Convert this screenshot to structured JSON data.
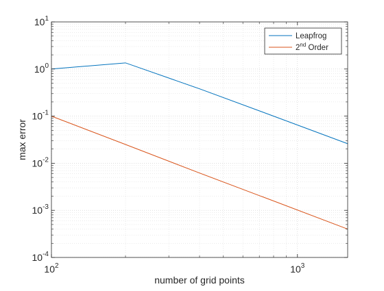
{
  "chart_data": {
    "type": "line",
    "xlabel": "number of grid points",
    "ylabel": "max error",
    "xscale": "log",
    "yscale": "log",
    "xlim": [
      100,
      1600
    ],
    "ylim": [
      0.0001,
      10
    ],
    "grid": "major and minor",
    "legend_position": "top-right",
    "x_ticks": [
      {
        "value": 100,
        "base": "10",
        "exp": "2"
      },
      {
        "value": 1000,
        "base": "10",
        "exp": "3"
      }
    ],
    "y_ticks": [
      {
        "value": 10,
        "base": "10",
        "exp": "1"
      },
      {
        "value": 1,
        "base": "10",
        "exp": "0"
      },
      {
        "value": 0.1,
        "base": "10",
        "exp": "-1"
      },
      {
        "value": 0.01,
        "base": "10",
        "exp": "-2"
      },
      {
        "value": 0.001,
        "base": "10",
        "exp": "-3"
      },
      {
        "value": 0.0001,
        "base": "10",
        "exp": "-4"
      }
    ],
    "series": [
      {
        "name": "Leapfrog",
        "legend_parts": [
          {
            "text": "Leapfrog",
            "sup": ""
          }
        ],
        "color": "#0072BD",
        "x": [
          100,
          200,
          400,
          800,
          1600
        ],
        "y": [
          1.0,
          1.35,
          0.38,
          0.1,
          0.026
        ]
      },
      {
        "name": "2nd Order",
        "legend_parts": [
          {
            "text": "2",
            "sup": "nd"
          },
          {
            "text": " Order",
            "sup": ""
          }
        ],
        "color": "#D95319",
        "x": [
          100,
          200,
          400,
          800,
          1600
        ],
        "y": [
          0.1,
          0.025,
          0.0062,
          0.00158,
          0.0004
        ]
      }
    ]
  }
}
